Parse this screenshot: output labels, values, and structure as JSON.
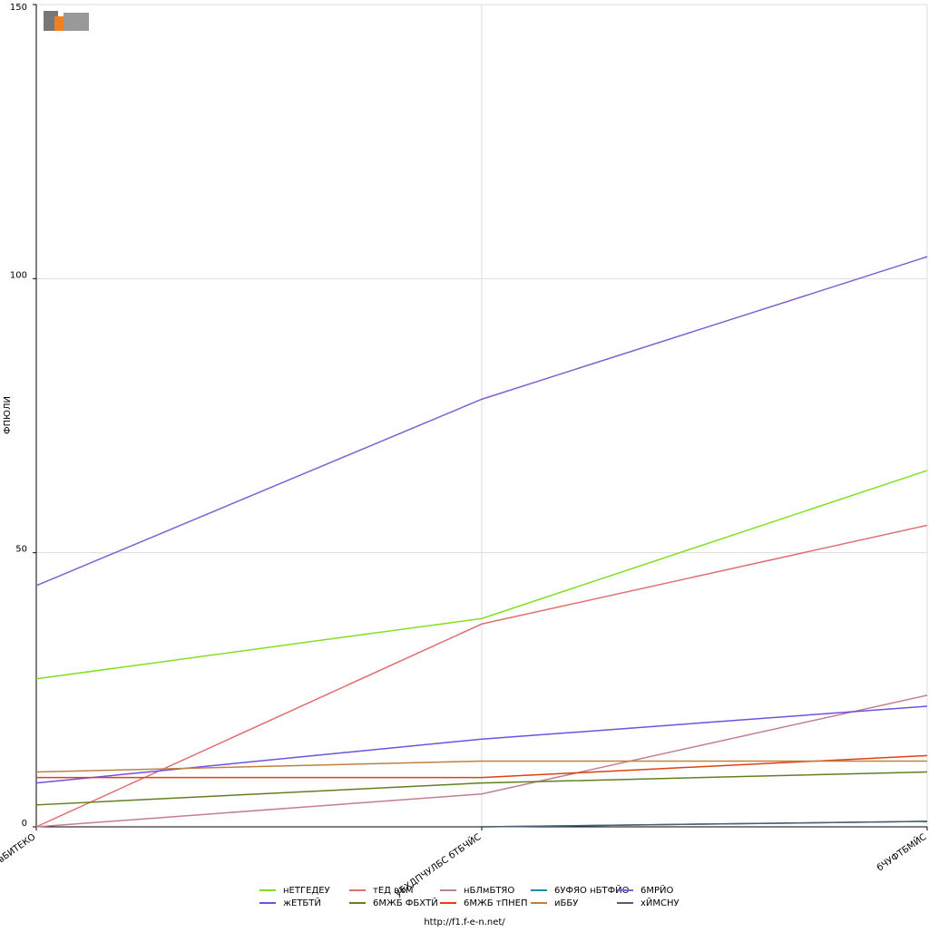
{
  "chart_data": {
    "type": "line",
    "y_label": "ФПЮЛИ",
    "footer": "http://f1.f-e-n.net/",
    "categories": [
      "вБИТЕКО",
      "уБХДПЧУЛБС бТБЧЙС",
      "бЧУФТБМЙС"
    ],
    "ylim": [
      0,
      150
    ],
    "yticks": [
      0,
      50,
      100,
      150
    ],
    "grid": true,
    "series": [
      {
        "name": "нЕТГЕДЕУ",
        "color": "#80e020",
        "values": [
          27,
          38,
          65
        ]
      },
      {
        "name": "тЕД вХМ",
        "color": "#e07070",
        "values": [
          0,
          37,
          55
        ]
      },
      {
        "name": "нБЛмБТЯО",
        "color": "#c08090",
        "values": [
          0,
          6,
          24
        ]
      },
      {
        "name": "6УФЯО нБТФЙО",
        "color": "#2090a0",
        "values": [
          null,
          0,
          1
        ]
      },
      {
        "name": "6МРЙО",
        "color": "#8060d0",
        "values": [
          44,
          78,
          104
        ]
      },
      {
        "name": "жЕТБТЙ",
        "color": "#7050e0",
        "values": [
          8,
          16,
          22
        ]
      },
      {
        "name": "6МЖБ ФБХТЙ",
        "color": "#608020",
        "values": [
          4,
          8,
          10
        ]
      },
      {
        "name": "6МЖБ тПНЕП",
        "color": "#e04010",
        "values": [
          9,
          9,
          13
        ]
      },
      {
        "name": "иББУ",
        "color": "#c08040",
        "values": [
          10,
          12,
          12
        ]
      },
      {
        "name": "хЙМСНУ",
        "color": "#506070",
        "values": [
          null,
          0,
          1
        ]
      }
    ]
  }
}
